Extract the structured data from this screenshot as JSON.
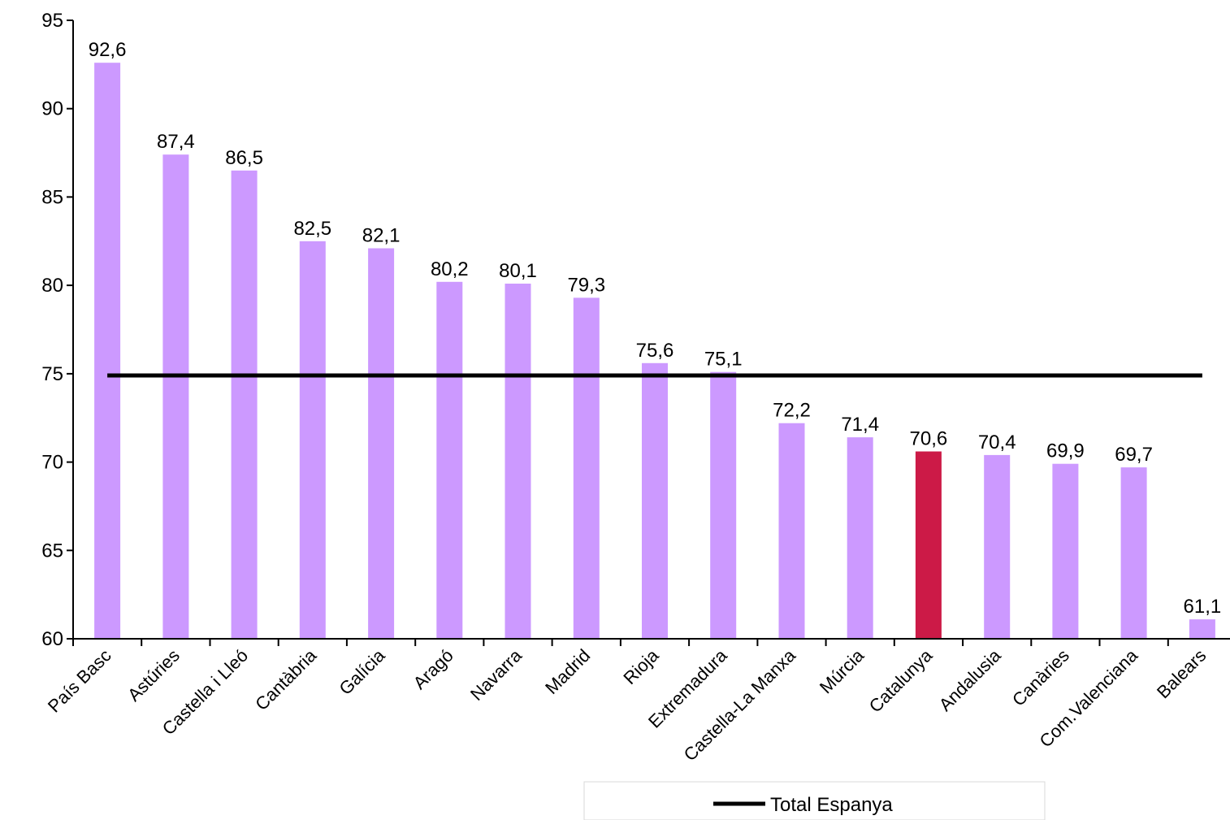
{
  "chart_data": {
    "type": "bar",
    "categories": [
      "País Basc",
      "Astúries",
      "Castella i Lleó",
      "Cantàbria",
      "Galícia",
      "Aragó",
      "Navarra",
      "Madrid",
      "Rioja",
      "Extremadura",
      "Castella-La Manxa",
      "Múrcia",
      "Catalunya",
      "Andalusia",
      "Canàries",
      "Com.Valenciana",
      "Balears"
    ],
    "values": [
      92.6,
      87.4,
      86.5,
      82.5,
      82.1,
      80.2,
      80.1,
      79.3,
      75.6,
      75.1,
      72.2,
      71.4,
      70.6,
      70.4,
      69.9,
      69.7,
      61.1
    ],
    "data_labels": [
      "92,6",
      "87,4",
      "86,5",
      "82,5",
      "82,1",
      "80,2",
      "80,1",
      "79,3",
      "75,6",
      "75,1",
      "72,2",
      "71,4",
      "70,6",
      "70,4",
      "69,9",
      "69,7",
      "61,1"
    ],
    "highlight_category": "Catalunya",
    "reference_line": {
      "name": "Total Espanya",
      "value": 74.9,
      "color": "#000000"
    },
    "ylim": [
      60,
      95
    ],
    "yticks": [
      60,
      65,
      70,
      75,
      80,
      85,
      90,
      95
    ],
    "title": "",
    "xlabel": "",
    "ylabel": "",
    "colors": {
      "bar": "#cc99ff",
      "highlight": "#cc1a47",
      "axis": "#000000"
    },
    "grid": false,
    "legend_position": "bottom"
  }
}
